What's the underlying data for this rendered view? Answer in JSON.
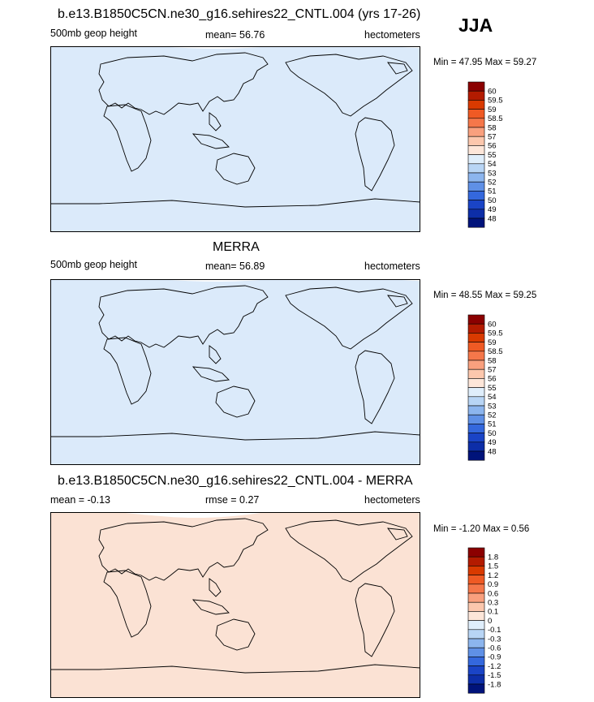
{
  "season": "JJA",
  "panels": [
    {
      "title": "b.e13.B1850C5CN.ne30_g16.sehires22_CNTL.004 (yrs 17-26)",
      "left_label": "500mb geop height",
      "center_label": "mean=  56.76",
      "right_label": "hectometers",
      "minmax": "Min =  47.95 Max =  59.27",
      "colorbar_labels": [
        "60",
        "59.5",
        "59",
        "58.5",
        "58",
        "57",
        "56",
        "55",
        "54",
        "53",
        "52",
        "51",
        "50",
        "49",
        "48"
      ]
    },
    {
      "title": "MERRA",
      "left_label": "500mb geop height",
      "center_label": "mean=  56.89",
      "right_label": "hectometers",
      "minmax": "Min =  48.55 Max =  59.25",
      "colorbar_labels": [
        "60",
        "59.5",
        "59",
        "58.5",
        "58",
        "57",
        "56",
        "55",
        "54",
        "53",
        "52",
        "51",
        "50",
        "49",
        "48"
      ]
    },
    {
      "title": "b.e13.B1850C5CN.ne30_g16.sehires22_CNTL.004 - MERRA",
      "left_label": "mean =  -0.13",
      "center_label": "rmse =   0.27",
      "right_label": "hectometers",
      "minmax": "Min =  -1.20 Max =   0.56",
      "colorbar_labels": [
        "1.8",
        "1.5",
        "1.2",
        "0.9",
        "0.6",
        "0.3",
        "0.1",
        "0",
        "-0.1",
        "-0.3",
        "-0.6",
        "-0.9",
        "-1.2",
        "-1.5",
        "-1.8"
      ]
    }
  ],
  "colors": {
    "colorbar": [
      "#8b0000",
      "#b31b00",
      "#d93a00",
      "#ef5a24",
      "#f5774a",
      "#f9a07e",
      "#fcc7ad",
      "#fde6d9",
      "#dfeefb",
      "#b8d5f5",
      "#8cb5ee",
      "#5f90e6",
      "#3468dd",
      "#1a44c6",
      "#0d2ea8",
      "#00137a"
    ],
    "zonal_ctrl": [
      "#003fb8",
      "#0a4cc4",
      "#2a66d8",
      "#5b8fe6",
      "#a9c9f1",
      "#f7c2a4",
      "#f17f55",
      "#ea5a30",
      "#e84d25",
      "#ec5f32",
      "#f5a07e",
      "#fbd7c2",
      "#dbeafa"
    ],
    "zonal_merra": [
      "#003fb8",
      "#0b4fc6",
      "#2e6ad9",
      "#6398e8",
      "#b0cdf2",
      "#f8c6a9",
      "#f08358",
      "#e95a2f",
      "#e84c24",
      "#ec6538",
      "#f6a887",
      "#fbdccb",
      "#dbeafa"
    ],
    "zonal_diff": [
      "#3a70dc",
      "#6092e5",
      "#7fa8ea",
      "#9fbfef",
      "#c0d6f4",
      "#dfeafb",
      "#e6eefb",
      "#dbe7fa",
      "#e2ecfb",
      "#f1c9b2",
      "#f6b497",
      "#f9c8b2",
      "#fbe2d4"
    ]
  }
}
